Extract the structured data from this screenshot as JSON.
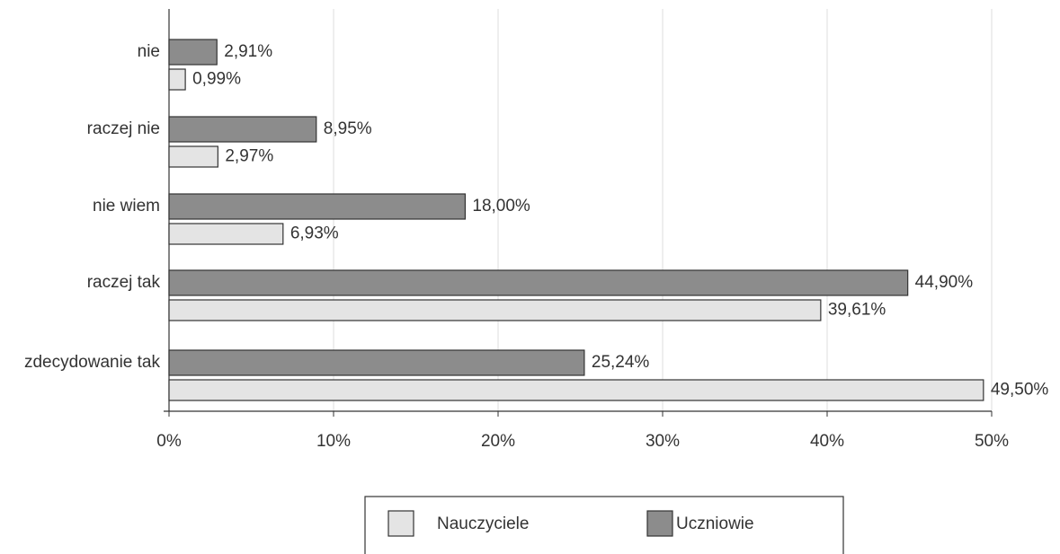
{
  "chart_data": {
    "type": "barh",
    "categories": [
      "nie",
      "raczej nie",
      "nie wiem",
      "raczej tak",
      "zdecydowanie tak"
    ],
    "series": [
      {
        "name": "Nauczyciele",
        "color": "#e4e4e4",
        "values": [
          0.99,
          2.97,
          6.93,
          39.61,
          49.5
        ],
        "value_labels": [
          "0,99%",
          "2,97%",
          "6,93%",
          "39,61%",
          "49,50%"
        ]
      },
      {
        "name": "Uczniowie",
        "color": "#8c8c8c",
        "values": [
          2.91,
          8.95,
          18.0,
          44.9,
          25.24
        ],
        "value_labels": [
          "2,91%",
          "8,95%",
          "18,00%",
          "44,90%",
          "25,24%"
        ]
      }
    ],
    "xlim": [
      0,
      50
    ],
    "xticks": [
      {
        "value": 0,
        "label": "0%"
      },
      {
        "value": 10,
        "label": "10%"
      },
      {
        "value": 20,
        "label": "20%"
      },
      {
        "value": 30,
        "label": "30%"
      },
      {
        "value": 40,
        "label": "40%"
      },
      {
        "value": 50,
        "label": "50%"
      }
    ],
    "grid": true,
    "legend": "bottom"
  }
}
